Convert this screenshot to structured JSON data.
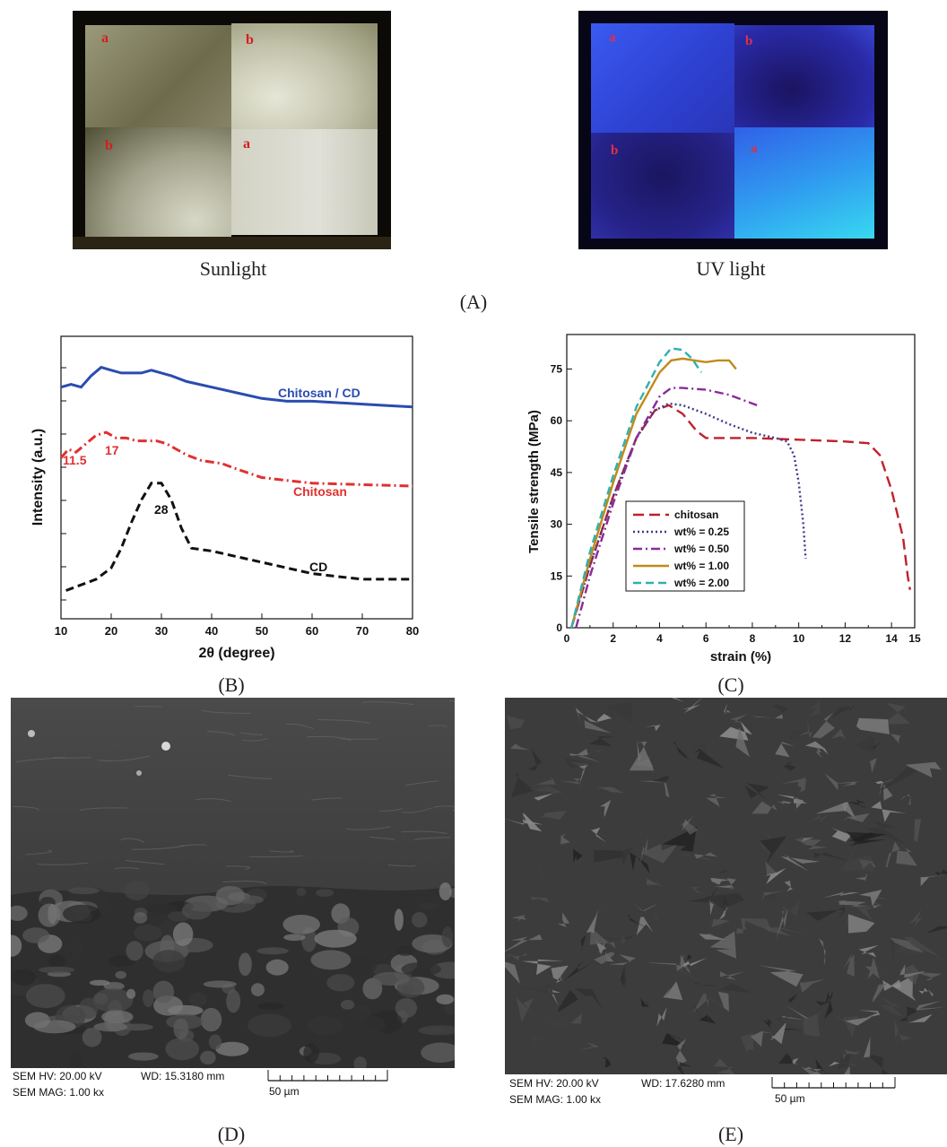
{
  "panel_a": {
    "caption": "(A)",
    "left_caption": "Sunlight",
    "right_caption": "UV light",
    "sunlight_labels": [
      "a",
      "b",
      "b",
      "a"
    ],
    "uv_labels": [
      "a",
      "b",
      "b",
      "a"
    ]
  },
  "panel_b": {
    "caption": "(B)"
  },
  "panel_c": {
    "caption": "(C)"
  },
  "panel_d": {
    "caption": "(D)",
    "sem_hv": "SEM HV: 20.00 kV",
    "wd": "WD: 15.3180 mm",
    "sem_mag": "SEM MAG: 1.00 kx",
    "scale": "50 µm"
  },
  "panel_e": {
    "caption": "(E)",
    "sem_hv": "SEM HV: 20.00 kV",
    "wd": "WD: 17.6280 mm",
    "sem_mag": "SEM MAG: 1.00 kx",
    "scale": "50 µm"
  },
  "chart_data": [
    {
      "type": "line",
      "title": "",
      "xlabel": "2θ (degree)",
      "ylabel": "Intensity (a.u.)",
      "xlim": [
        10,
        80
      ],
      "xticks": [
        "10",
        "20",
        "30",
        "40",
        "50",
        "60",
        "70",
        "80"
      ],
      "grid": false,
      "series": [
        {
          "name": "Chitosan / CD",
          "color": "#2a4cb0",
          "dash": "solid",
          "x": [
            10,
            12,
            14,
            16,
            18,
            20,
            22,
            24,
            26,
            28,
            30,
            32,
            35,
            40,
            45,
            50,
            55,
            60,
            65,
            70,
            75,
            80
          ],
          "y": [
            0.82,
            0.83,
            0.82,
            0.86,
            0.89,
            0.88,
            0.87,
            0.87,
            0.87,
            0.88,
            0.87,
            0.86,
            0.84,
            0.82,
            0.8,
            0.78,
            0.77,
            0.77,
            0.765,
            0.76,
            0.755,
            0.75
          ]
        },
        {
          "name": "Chitosan",
          "color": "#e03030",
          "dash": "dashdot",
          "x": [
            10,
            11.5,
            13,
            15,
            17,
            19,
            21,
            23,
            25,
            27,
            29,
            31,
            33,
            35,
            38,
            42,
            45,
            50,
            55,
            60,
            70,
            80
          ],
          "y": [
            0.57,
            0.6,
            0.59,
            0.62,
            0.65,
            0.66,
            0.64,
            0.64,
            0.63,
            0.63,
            0.63,
            0.62,
            0.6,
            0.58,
            0.56,
            0.55,
            0.53,
            0.5,
            0.49,
            0.48,
            0.475,
            0.47
          ]
        },
        {
          "name": "CD",
          "color": "#111111",
          "dash": "dashed",
          "x": [
            11,
            14,
            17,
            20,
            22,
            24,
            26,
            28,
            30,
            32,
            34,
            36,
            40,
            45,
            50,
            55,
            60,
            65,
            70,
            80
          ],
          "y": [
            0.1,
            0.12,
            0.14,
            0.18,
            0.25,
            0.34,
            0.42,
            0.48,
            0.48,
            0.42,
            0.32,
            0.25,
            0.24,
            0.22,
            0.2,
            0.18,
            0.16,
            0.15,
            0.14,
            0.14
          ]
        }
      ],
      "annotations": [
        {
          "text": "11.5",
          "color": "#e03030"
        },
        {
          "text": "17",
          "color": "#e03030"
        },
        {
          "text": "28",
          "color": "#111111"
        },
        {
          "text": "Chitosan / CD",
          "color": "#2a4cb0"
        },
        {
          "text": "Chitosan",
          "color": "#e03030"
        },
        {
          "text": "CD",
          "color": "#111111"
        }
      ]
    },
    {
      "type": "line",
      "title": "",
      "xlabel": "strain (%)",
      "ylabel": "Tensile strength (MPa)",
      "xlim": [
        0,
        15
      ],
      "ylim": [
        0,
        85
      ],
      "xticks": [
        0,
        2,
        4,
        6,
        8,
        10,
        12,
        14,
        15
      ],
      "yticks": [
        0,
        15,
        30,
        45,
        60,
        75
      ],
      "grid": false,
      "legend": "bottom-left",
      "series": [
        {
          "name": "chitosan",
          "color": "#c0202a",
          "dash": "longdash",
          "x": [
            0.2,
            1,
            2,
            3,
            3.8,
            4.4,
            5,
            5.6,
            6,
            8,
            10,
            12,
            13,
            13.5,
            14,
            14.5,
            14.7,
            14.8
          ],
          "y": [
            0,
            18,
            38,
            55,
            63,
            64.5,
            62,
            57,
            55,
            55,
            54.5,
            54,
            53.5,
            50,
            40,
            26,
            15,
            11
          ]
        },
        {
          "name": "wt% = 0.25",
          "color": "#3a3a8a",
          "dash": "dotted",
          "x": [
            0.2,
            1,
            2,
            3,
            3.8,
            4.4,
            5,
            6,
            7,
            8,
            9,
            9.5,
            9.8,
            10,
            10.2,
            10.3
          ],
          "y": [
            0,
            18,
            38,
            55,
            63,
            65,
            64.5,
            62,
            59,
            56.5,
            55,
            54,
            50,
            42,
            30,
            20
          ]
        },
        {
          "name": "wt% = 0.50",
          "color": "#8a2a9a",
          "dash": "dashdot",
          "x": [
            0.4,
            1,
            2,
            3,
            4,
            4.5,
            5,
            6,
            7,
            8.2
          ],
          "y": [
            0,
            15,
            36,
            55,
            67,
            69.5,
            69.5,
            69,
            67.5,
            64.5
          ]
        },
        {
          "name": "wt% = 1.00",
          "color": "#c08a1a",
          "dash": "solid",
          "x": [
            0.2,
            1,
            2,
            3,
            4,
            4.5,
            5,
            5.5,
            6,
            6.5,
            7,
            7.3
          ],
          "y": [
            0,
            20,
            42,
            62,
            74,
            77.5,
            78,
            77.5,
            77,
            77.5,
            77.5,
            75
          ]
        },
        {
          "name": "wt% = 2.00",
          "color": "#30b0b0",
          "dash": "dashed",
          "x": [
            0.2,
            1,
            2,
            3,
            4,
            4.5,
            5,
            5.4,
            5.7,
            5.8
          ],
          "y": [
            0,
            22,
            44,
            64,
            77,
            81,
            80.5,
            78,
            75,
            74
          ]
        }
      ]
    }
  ]
}
